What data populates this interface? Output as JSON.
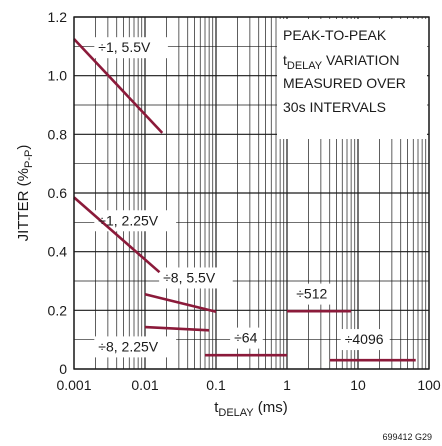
{
  "chart_data": {
    "type": "line",
    "xscale": "log",
    "xlim": [
      0.001,
      100
    ],
    "ylim": [
      0,
      1.2
    ],
    "grid": true,
    "xlabel_main": "t",
    "xlabel_sub": "DELAY",
    "xlabel_unit": " (ms)",
    "ylabel_main": "JITTER (%",
    "ylabel_sub": "P-P",
    "ylabel_end": ")",
    "x_ticks": [
      {
        "value": 0.001,
        "label": "0.001"
      },
      {
        "value": 0.01,
        "label": "0.01"
      },
      {
        "value": 0.1,
        "label": "0.1"
      },
      {
        "value": 1,
        "label": "1"
      },
      {
        "value": 10,
        "label": "10"
      },
      {
        "value": 100,
        "label": "100"
      }
    ],
    "y_ticks": [
      {
        "value": 0,
        "label": "0"
      },
      {
        "value": 0.2,
        "label": "0.2"
      },
      {
        "value": 0.4,
        "label": "0.4"
      },
      {
        "value": 0.6,
        "label": "0.6"
      },
      {
        "value": 0.8,
        "label": "0.8"
      },
      {
        "value": 1.0,
        "label": "1.0"
      },
      {
        "value": 1.2,
        "label": "1.2"
      }
    ],
    "series": [
      {
        "name": "÷1, 5.5V",
        "x": [
          0.001,
          0.0175
        ],
        "y": [
          1.125,
          0.805
        ]
      },
      {
        "name": "÷1, 2.25V",
        "x": [
          0.001,
          0.016
        ],
        "y": [
          0.585,
          0.33
        ]
      },
      {
        "name": "÷8, 5.5V",
        "x": [
          0.01,
          0.1
        ],
        "y": [
          0.255,
          0.195
        ]
      },
      {
        "name": "÷8, 2.25V",
        "x": [
          0.01,
          0.08
        ],
        "y": [
          0.143,
          0.132
        ]
      },
      {
        "name": "÷64",
        "x": [
          0.07,
          1.0
        ],
        "y": [
          0.047,
          0.047
        ]
      },
      {
        "name": "÷512",
        "x": [
          1.0,
          8.0
        ],
        "y": [
          0.197,
          0.197
        ]
      },
      {
        "name": "÷4096",
        "x": [
          4.0,
          65.0
        ],
        "y": [
          0.03,
          0.03
        ]
      }
    ],
    "annotation_lines": [
      {
        "text": "PEAK-TO-PEAK"
      },
      {
        "main": "t",
        "sub": "DELAY",
        "rest": " VARIATION"
      },
      {
        "text": "MEASURED OVER"
      },
      {
        "text": "30s INTERVALS"
      }
    ],
    "series_color": "#8b1a3a",
    "grid_color": "#1a1a1a"
  },
  "figure_id": "699412 G29"
}
